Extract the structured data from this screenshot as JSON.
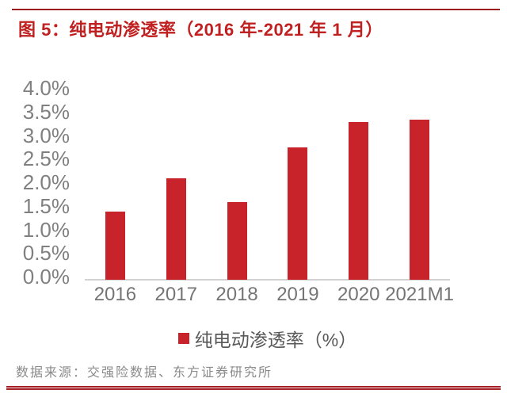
{
  "figure": {
    "title": "图 5：纯电动渗透率（2016 年-2021 年 1 月）",
    "source": "数据来源：交强险数据、东方证券研究所"
  },
  "legend": {
    "label": "纯电动渗透率（%）"
  },
  "chart_data": {
    "type": "bar",
    "title": "纯电动渗透率（2016 年-2021 年 1 月）",
    "categories": [
      "2016",
      "2017",
      "2018",
      "2019",
      "2020",
      "2021M1"
    ],
    "series": [
      {
        "name": "纯电动渗透率（%）",
        "values": [
          1.45,
          2.15,
          1.65,
          2.8,
          3.35,
          3.4
        ]
      }
    ],
    "ylim": [
      0,
      4.0
    ],
    "ytick_step": 0.5,
    "ytick_labels": [
      "0.0%",
      "0.5%",
      "1.0%",
      "1.5%",
      "2.0%",
      "2.5%",
      "3.0%",
      "3.5%",
      "4.0%"
    ],
    "grid": false,
    "legend_position": "bottom"
  },
  "colors": {
    "bar_red": "#C8232A",
    "title_red": "#C02020",
    "top_rule_red": "#9C1B1E",
    "bottom_rule_red": "#A32025",
    "axis_line_gray": "#D2D2D2",
    "ytick_gray": "#808080",
    "xtick_gray": "#757575",
    "legend_text_gray": "#595959",
    "source_gray": "#8A8A8A"
  }
}
